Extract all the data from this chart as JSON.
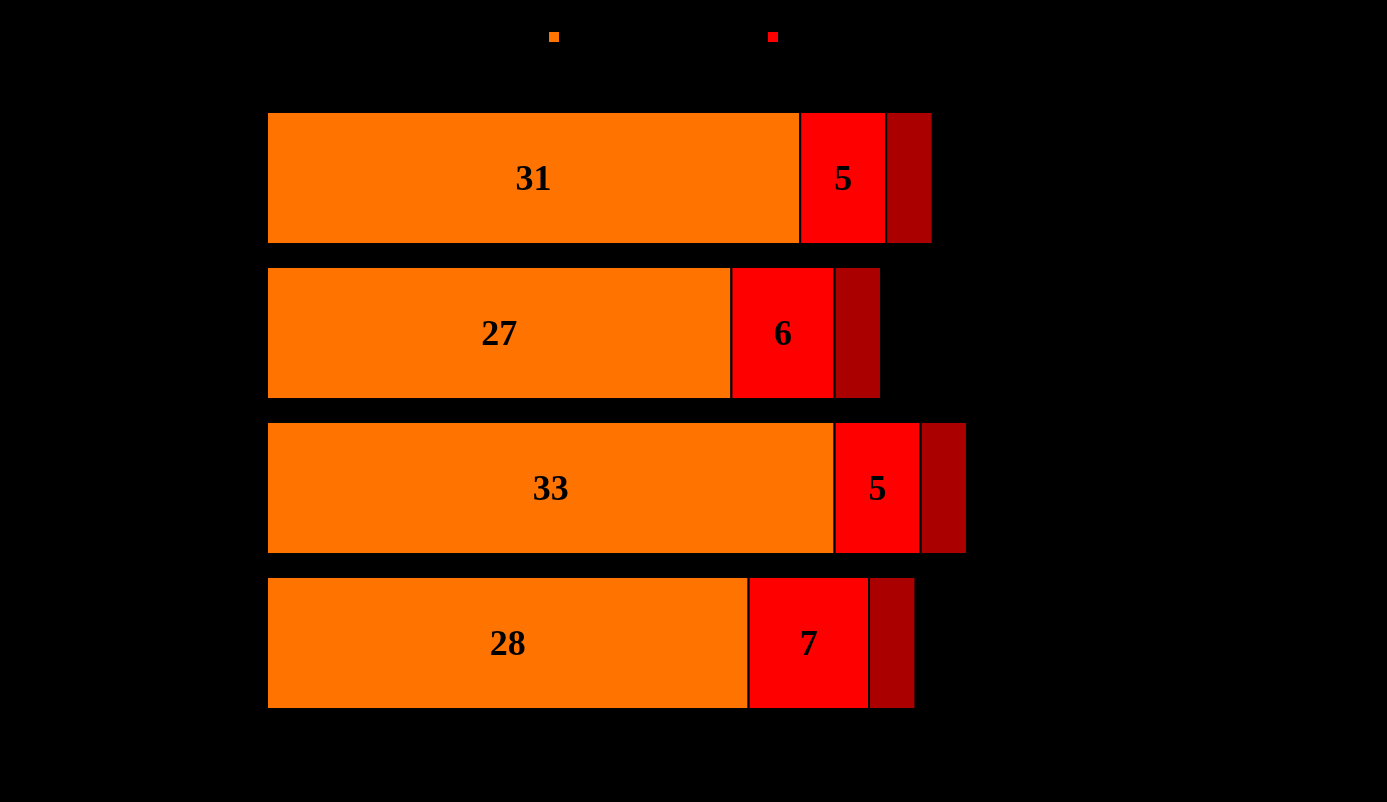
{
  "chart_data": {
    "type": "bar",
    "orientation": "horizontal",
    "stacked": true,
    "categories": [
      null,
      null,
      null,
      null
    ],
    "series": [
      {
        "color": "#ff7300",
        "values": [
          31,
          27,
          33,
          28
        ],
        "value_labels": [
          "31",
          "27",
          "33",
          "28"
        ]
      },
      {
        "color": "#ff0000",
        "values": [
          5,
          6,
          5,
          7
        ],
        "value_labels": [
          "5",
          "6",
          "5",
          "7"
        ]
      },
      {
        "color": "#aa0000",
        "values": [
          2.7,
          2.7,
          2.7,
          2.7
        ],
        "value_labels": [
          null,
          null,
          null,
          null
        ]
      }
    ]
  }
}
